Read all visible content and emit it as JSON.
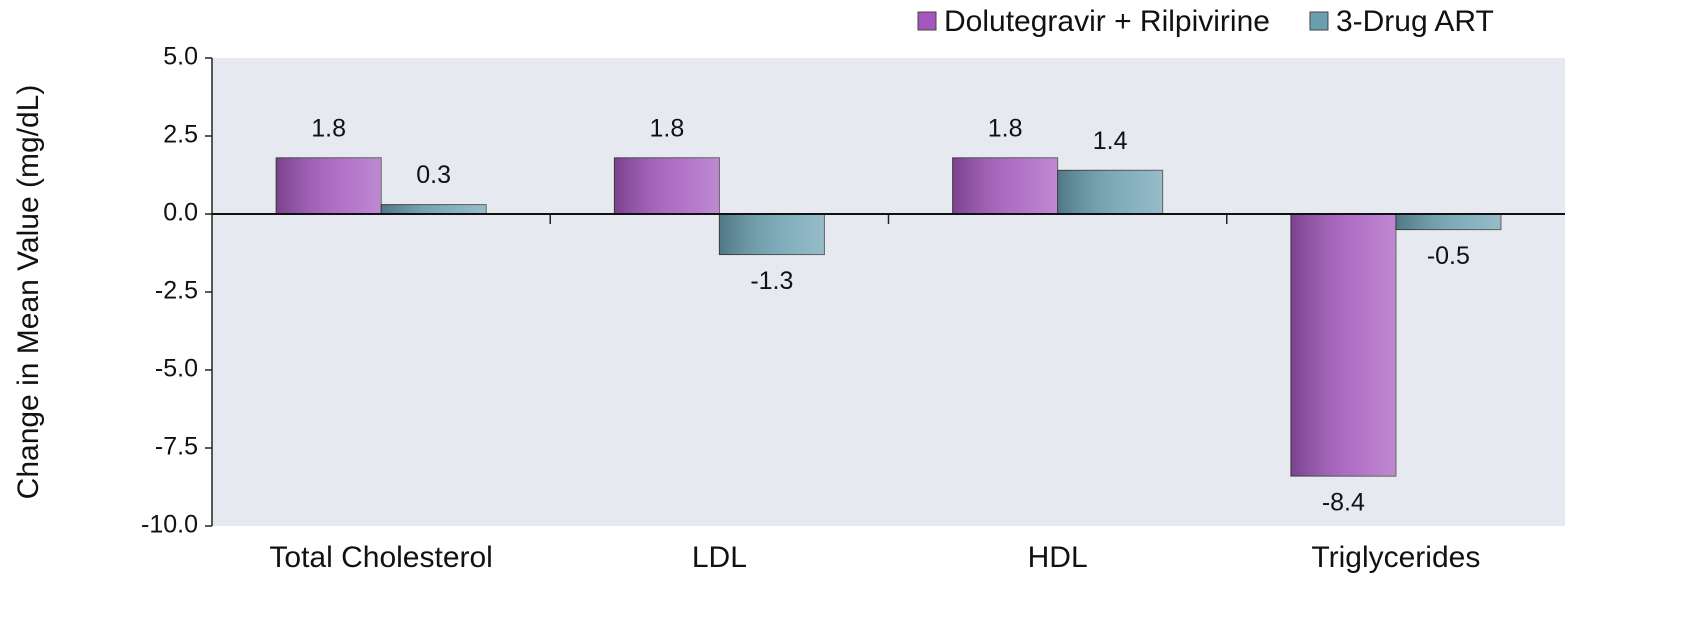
{
  "chart_data": {
    "type": "bar",
    "y_label": "Change in Mean Value (mg/dL)",
    "categories": [
      "Total Cholesterol",
      "LDL",
      "HDL",
      "Triglycerides"
    ],
    "series": [
      {
        "name": "Dolutegravir + Rilpivirine",
        "color": "#a357bd",
        "values": [
          1.8,
          1.8,
          1.8,
          -8.4
        ]
      },
      {
        "name": "3-Drug ART",
        "color": "#6a9fb0",
        "values": [
          0.3,
          -1.3,
          1.4,
          -0.5
        ]
      }
    ],
    "ylim": [
      -10,
      5
    ],
    "yticks": [
      {
        "value": 5,
        "label": "5.0"
      },
      2.5,
      {
        "value": 0,
        "label": "0.0"
      },
      -2.5,
      {
        "value": -5,
        "label": "-5.0"
      },
      -7.5,
      {
        "value": -10,
        "label": "-10.0"
      }
    ],
    "legend": "top-right"
  }
}
